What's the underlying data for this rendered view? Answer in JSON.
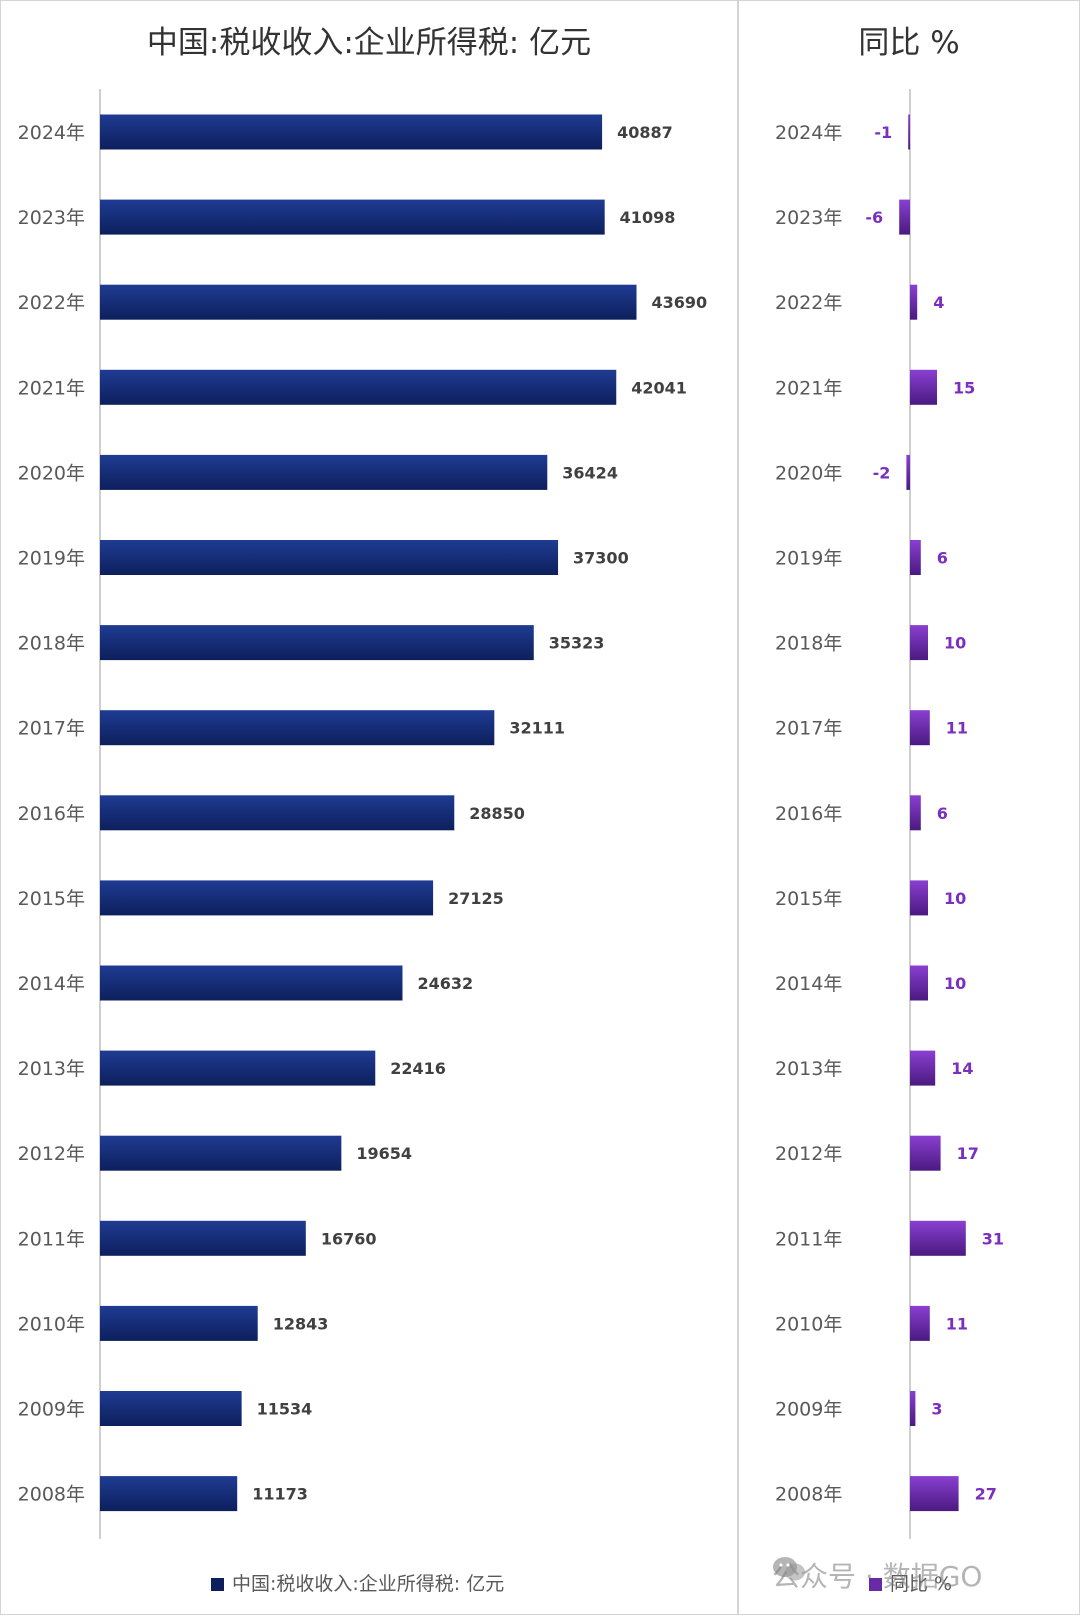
{
  "chart_data": [
    {
      "type": "bar",
      "orientation": "horizontal",
      "title": "中国:税收收入:企业所得税: 亿元",
      "categories": [
        "2024年",
        "2023年",
        "2022年",
        "2021年",
        "2020年",
        "2019年",
        "2018年",
        "2017年",
        "2016年",
        "2015年",
        "2014年",
        "2013年",
        "2012年",
        "2011年",
        "2010年",
        "2009年",
        "2008年"
      ],
      "series": [
        {
          "name": "中国:税收收入:企业所得税: 亿元",
          "values": [
            40887,
            41098,
            43690,
            42041,
            36424,
            37300,
            35323,
            32111,
            28850,
            27125,
            24632,
            22416,
            19654,
            16760,
            12843,
            11534,
            11173
          ]
        }
      ],
      "xlim": [
        0,
        50000
      ],
      "grid": false,
      "legend": "bottom",
      "colors": {
        "bar_top": "#1f3c93",
        "bar_bottom": "#0d1f5c",
        "label": "#404040"
      }
    },
    {
      "type": "bar",
      "orientation": "horizontal",
      "title": "同比 %",
      "categories": [
        "2024年",
        "2023年",
        "2022年",
        "2021年",
        "2020年",
        "2019年",
        "2018年",
        "2017年",
        "2016年",
        "2015年",
        "2014年",
        "2013年",
        "2012年",
        "2011年",
        "2010年",
        "2009年",
        "2008年"
      ],
      "series": [
        {
          "name": "同比 %",
          "values": [
            -1,
            -6,
            4,
            15,
            -2,
            6,
            10,
            11,
            6,
            10,
            10,
            14,
            17,
            31,
            11,
            3,
            27
          ]
        }
      ],
      "xlim": [
        -10,
        40
      ],
      "grid": false,
      "legend": "bottom",
      "colors": {
        "bar_top": "#8a3fd1",
        "bar_bottom": "#4a1a80",
        "label": "#7b2fbf"
      }
    }
  ],
  "watermark": "公众号 · 数据GO"
}
